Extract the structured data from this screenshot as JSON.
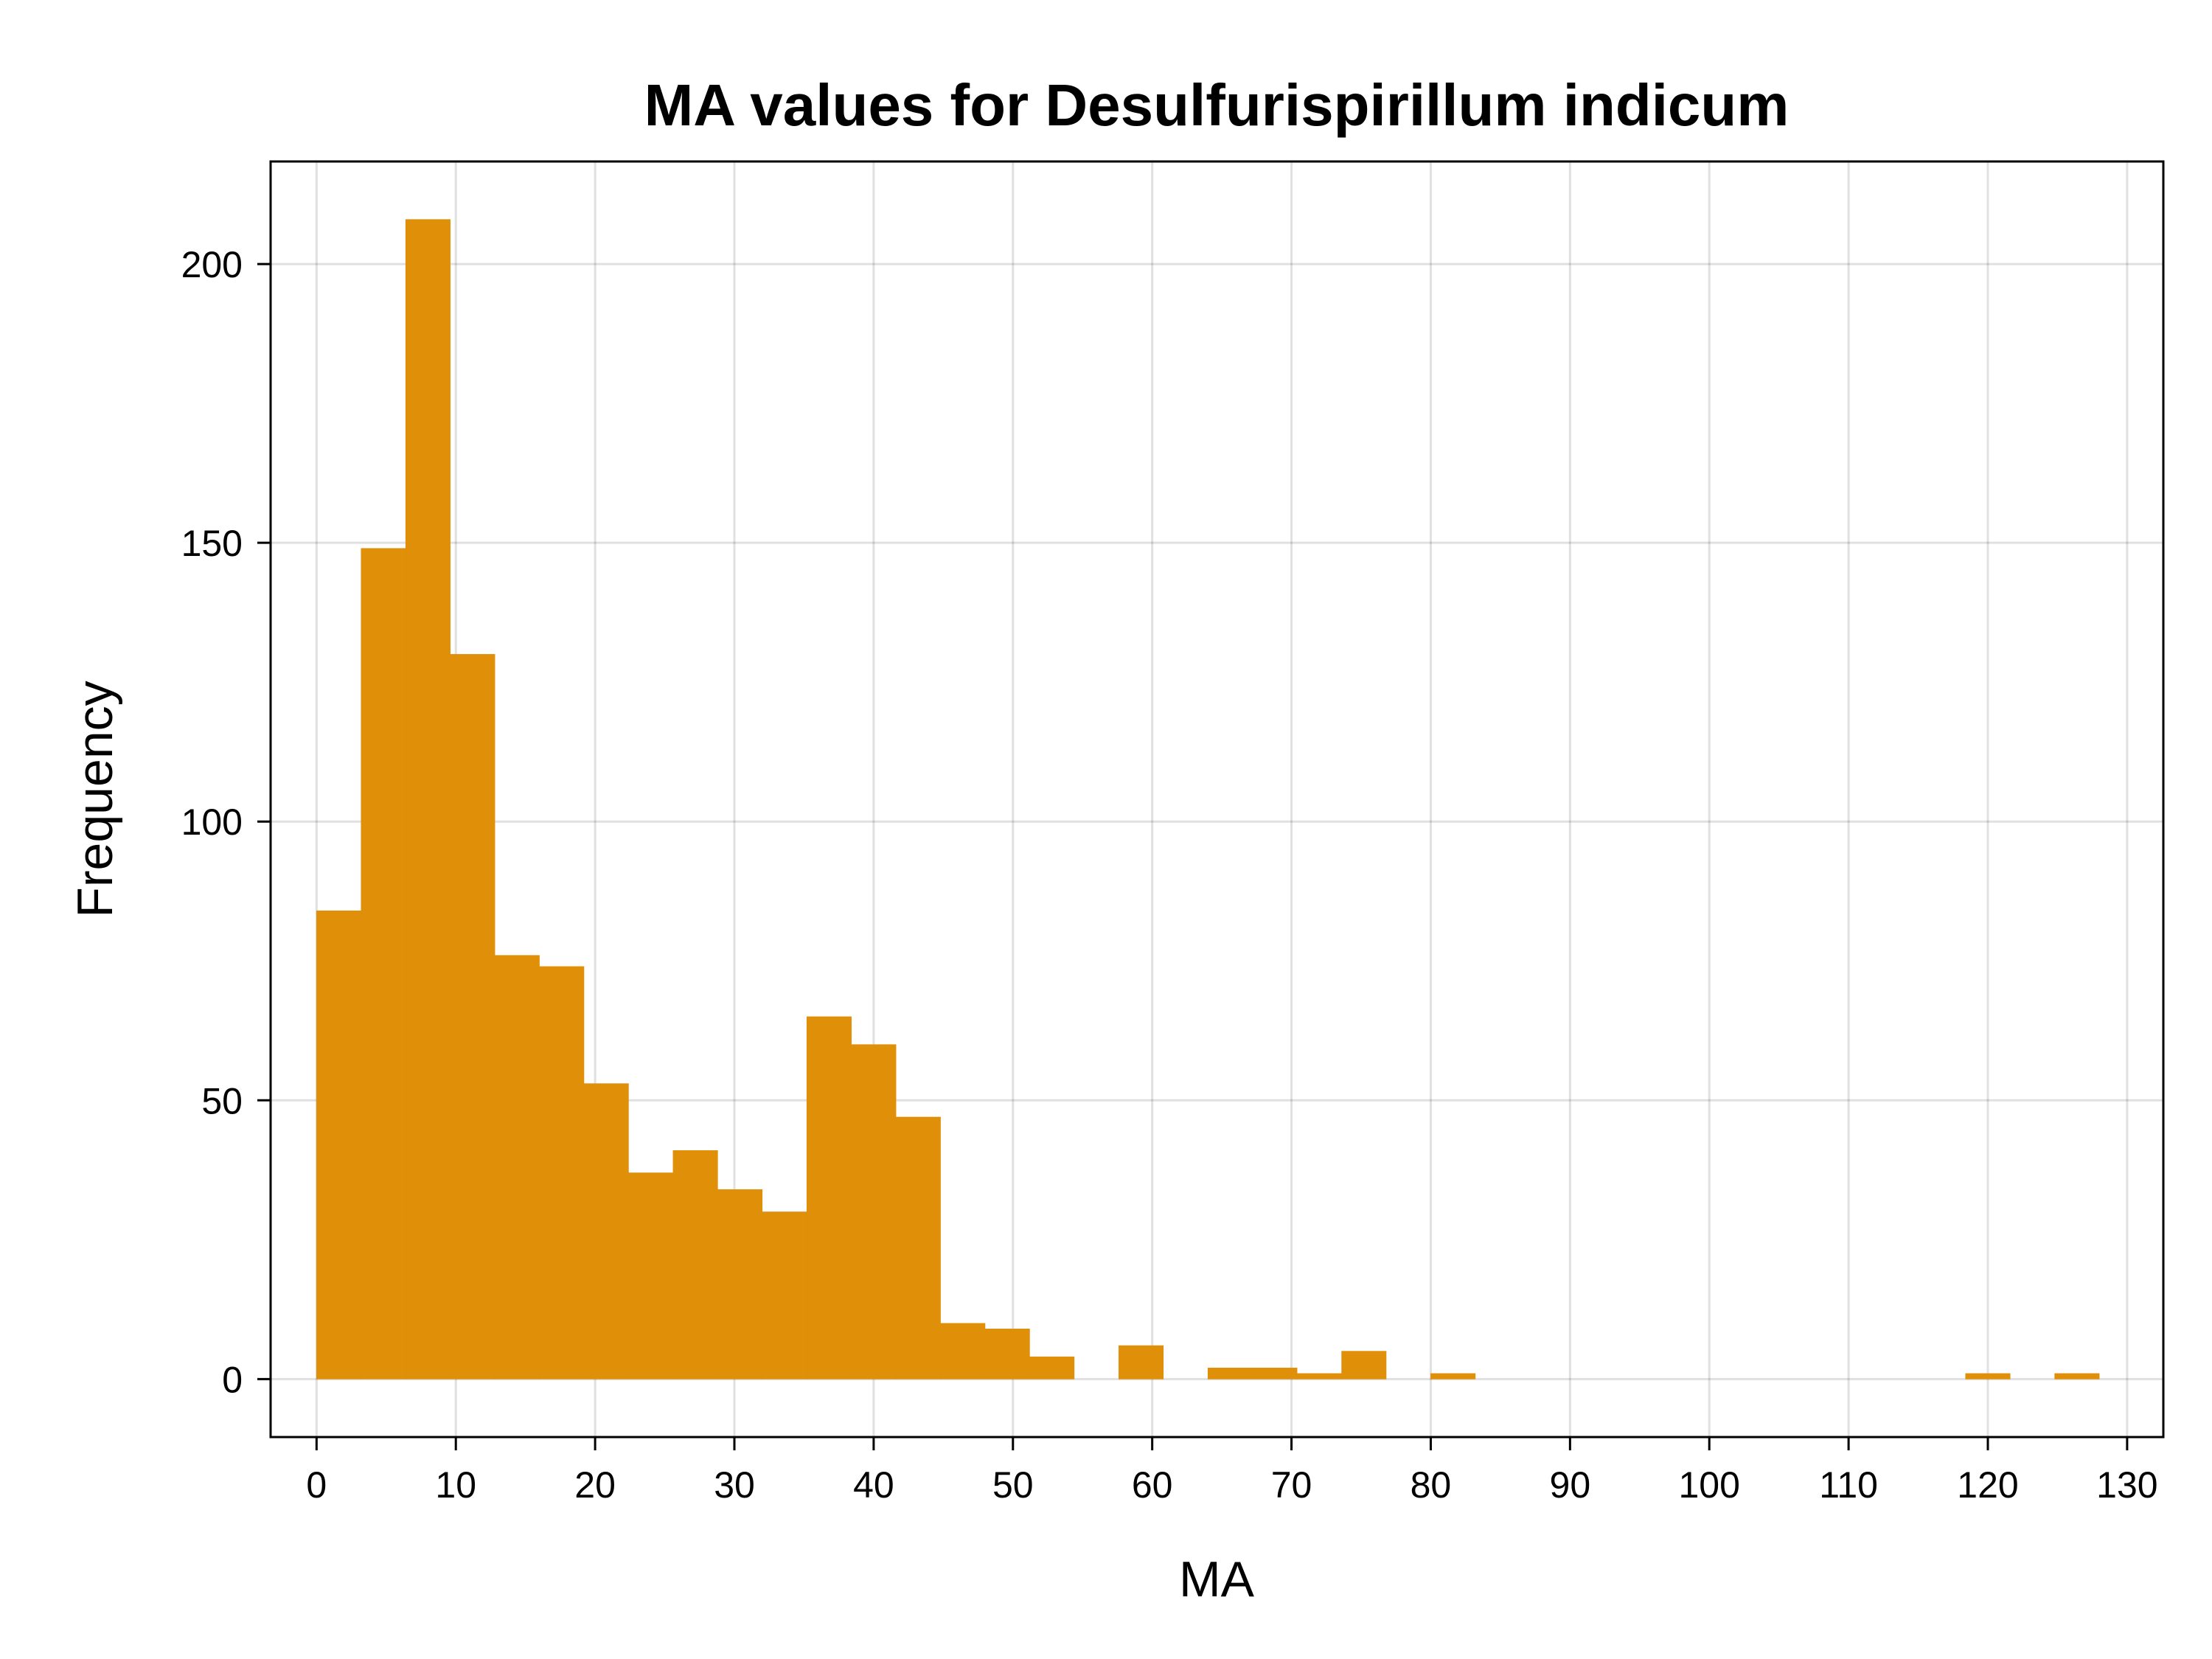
{
  "chart_data": {
    "type": "bar",
    "title": "MA values for Desulfurispirillum indicum",
    "xlabel": "MA",
    "ylabel": "Frequency",
    "bar_color": "#E08F08",
    "bin_width": 3.2,
    "bin_start": 0,
    "values": [
      84,
      149,
      208,
      130,
      76,
      74,
      53,
      37,
      41,
      34,
      30,
      65,
      60,
      47,
      10,
      9,
      4,
      0,
      6,
      0,
      2,
      2,
      1,
      5,
      0,
      1,
      0,
      0,
      0,
      0,
      0,
      0,
      0,
      0,
      0,
      0,
      0,
      1,
      0,
      1
    ],
    "xlim": [
      -3.3,
      132.6
    ],
    "ylim": [
      -10.4,
      218.4
    ],
    "xticks": [
      0,
      10,
      20,
      30,
      40,
      50,
      60,
      70,
      80,
      90,
      100,
      110,
      120,
      130
    ],
    "xtick_labels": [
      "0",
      "10",
      "20",
      "30",
      "40",
      "50",
      "60",
      "70",
      "80",
      "90",
      "100",
      "110",
      "120",
      "130"
    ],
    "yticks": [
      0,
      50,
      100,
      150,
      200
    ],
    "ytick_labels": [
      "0",
      "50",
      "100",
      "150",
      "200"
    ],
    "grid": true,
    "legend": false
  }
}
